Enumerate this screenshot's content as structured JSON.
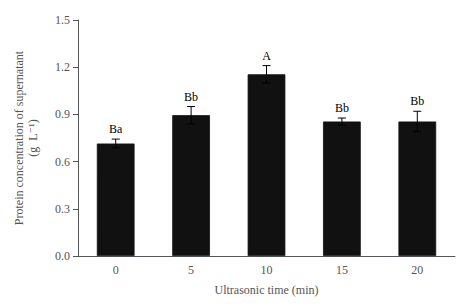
{
  "chart_data": {
    "type": "bar",
    "categories": [
      "0",
      "5",
      "10",
      "15",
      "20"
    ],
    "values": [
      0.715,
      0.895,
      1.155,
      0.855,
      0.855
    ],
    "errors": [
      0.028,
      0.055,
      0.055,
      0.022,
      0.065
    ],
    "annotations": [
      "Ba",
      "Bb",
      "A",
      "Bb",
      "Bb"
    ],
    "color": "#111111",
    "xlabel": "Ultrasonic time (min)",
    "ylabel": "Protein concentration of supernatant\n(g  L⁻¹)",
    "ylim": [
      0.0,
      1.5
    ],
    "yticks": [
      {
        "value": 0.0,
        "label": "0.0"
      },
      0.3,
      0.6,
      0.9,
      1.2,
      1.5
    ],
    "grid": false
  }
}
